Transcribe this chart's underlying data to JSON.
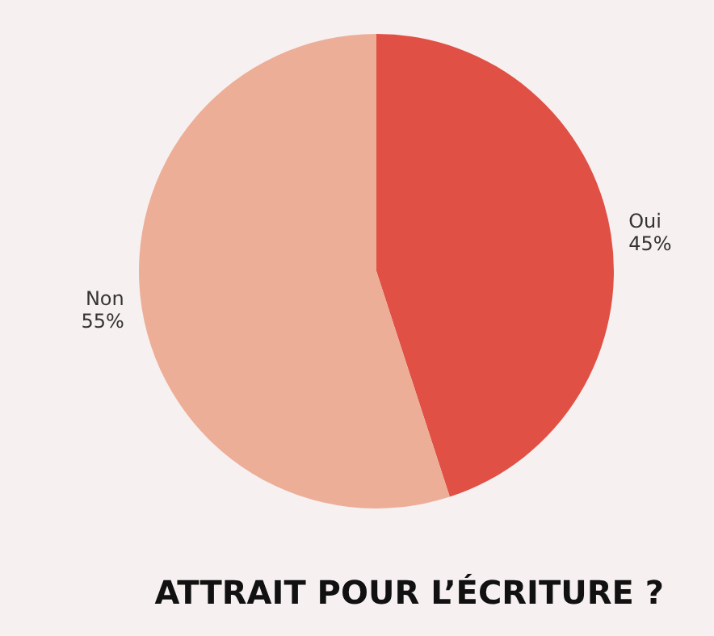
{
  "chart_data": {
    "type": "pie",
    "title": "ATTRAIT POUR L’ÉCRITURE ?",
    "categories": [
      "Oui",
      "Non"
    ],
    "values": [
      45,
      55
    ],
    "value_labels": [
      "45%",
      "55%"
    ],
    "colors": [
      "#e05045",
      "#edae98"
    ]
  }
}
